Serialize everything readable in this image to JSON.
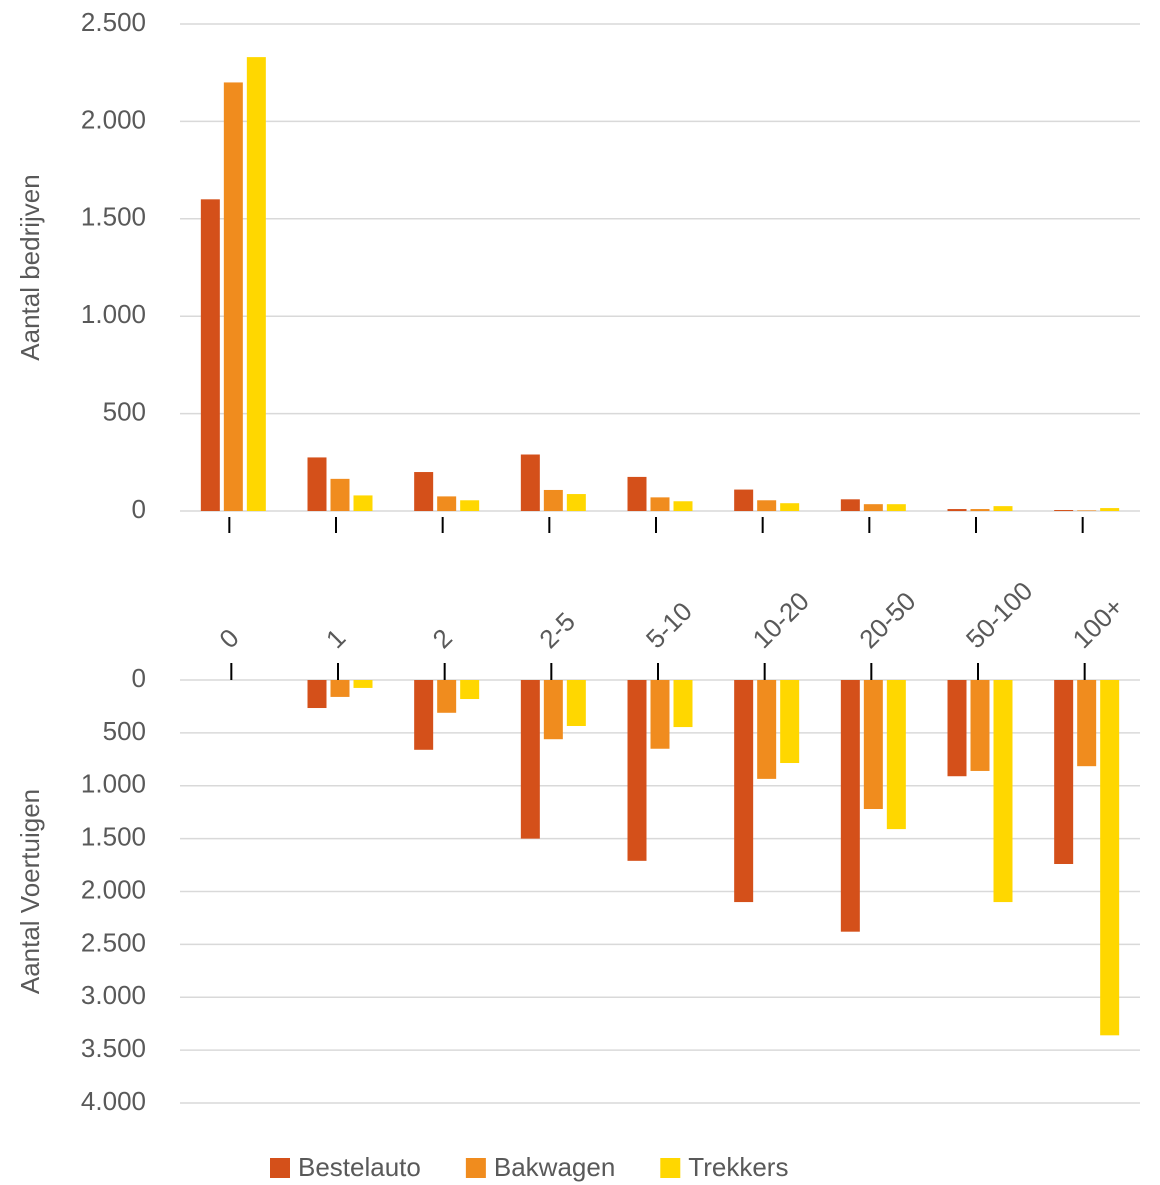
{
  "chart_data": [
    {
      "type": "bar",
      "ylabel": "Aantal bedrijven",
      "categories": [
        "0",
        "1",
        "2",
        "2-5",
        "5-10",
        "10-20",
        "20-50",
        "50-100",
        "100+"
      ],
      "series": [
        {
          "name": "Bestelauto",
          "color": "#d4501a",
          "values": [
            1600,
            275,
            200,
            290,
            175,
            110,
            60,
            10,
            5
          ]
        },
        {
          "name": "Bakwagen",
          "color": "#f08c1e",
          "values": [
            2200,
            165,
            75,
            108,
            70,
            55,
            35,
            10,
            3
          ]
        },
        {
          "name": "Trekkers",
          "color": "#ffd700",
          "values": [
            2330,
            80,
            55,
            87,
            50,
            40,
            35,
            25,
            15
          ]
        }
      ],
      "ylim": [
        0,
        2500
      ],
      "yticks": [
        0,
        500,
        {
          "value": 1000,
          "label": "1.000"
        },
        {
          "value": 1500,
          "label": "1.500"
        },
        {
          "value": 2000,
          "label": "2.000"
        },
        {
          "value": 2500,
          "label": "2.500"
        }
      ],
      "grid": true,
      "legend": "bottom"
    },
    {
      "type": "bar",
      "ylabel": "Aantal Voertuigen",
      "y_inverted": true,
      "series": [
        {
          "color": "#d4501a",
          "values": [
            0,
            265,
            660,
            1500,
            1710,
            2100,
            2380,
            910,
            1740
          ]
        },
        {
          "color": "#f08c1e",
          "values": [
            0,
            160,
            310,
            560,
            650,
            935,
            1220,
            860,
            815
          ]
        },
        {
          "color": "#ffd700",
          "values": [
            0,
            75,
            180,
            435,
            445,
            785,
            1410,
            2100,
            3360
          ]
        }
      ],
      "ylim": [
        0,
        4000
      ],
      "yticks": [
        0,
        500,
        {
          "value": 1000,
          "label": "1.000"
        },
        {
          "value": 1500,
          "label": "1.500"
        },
        {
          "value": 2000,
          "label": "2.000"
        },
        {
          "value": 2500,
          "label": "2.500"
        },
        {
          "value": 3000,
          "label": "3.000"
        },
        {
          "value": 3500,
          "label": "3.500"
        },
        {
          "value": 4000,
          "label": "4.000"
        }
      ],
      "grid": true
    }
  ]
}
